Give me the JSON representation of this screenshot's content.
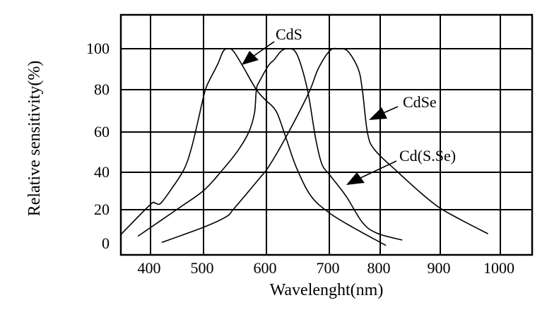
{
  "chart_data": {
    "type": "line",
    "title": "",
    "xlabel": "Wavelenght(nm)",
    "ylabel": "Relative sensitivity(%)",
    "xlim": [
      344,
      1053
    ],
    "ylim": [
      -4,
      113
    ],
    "grid": true,
    "x_ticks": [
      400,
      500,
      600,
      700,
      800,
      900,
      1000
    ],
    "x_tick_labels": [
      "400",
      "500",
      "600",
      "700",
      "800",
      "900",
      "1000"
    ],
    "y_ticks": [
      0,
      20,
      40,
      60,
      80,
      100
    ],
    "y_tick_labels": [
      "0",
      "20",
      "40",
      "60",
      "80",
      "100"
    ],
    "legend": "none (curves labeled by arrow annotations)",
    "series": [
      {
        "name": "CdS",
        "peak_nm": 538,
        "x": [
          345,
          399,
          409,
          419,
          440,
          463,
          476,
          489,
          500,
          506,
          522,
          531,
          538,
          547,
          562,
          584,
          600,
          609,
          618,
          631,
          648,
          671,
          701,
          746,
          809
        ],
        "y": [
          7,
          22.6,
          23.4,
          23.4,
          31.3,
          41.4,
          50.9,
          64.7,
          76.7,
          82.4,
          92.1,
          98.6,
          100,
          99,
          91.7,
          80,
          74.7,
          72.3,
          68.3,
          57.2,
          42.1,
          27.2,
          18.1,
          10.6,
          1
        ]
      },
      {
        "name": "Cd(S.Se)",
        "peak_nm": 635,
        "x": [
          377,
          449,
          500,
          528,
          555,
          572,
          581,
          584,
          589,
          604,
          612,
          624,
          635,
          646,
          656,
          667,
          678,
          688,
          701,
          733,
          765,
          793,
          836
        ],
        "y": [
          6,
          20,
          30.2,
          40.4,
          50.9,
          60,
          69,
          80,
          84.1,
          92.1,
          94.5,
          99,
          100,
          98.6,
          91,
          77.3,
          57.2,
          44.2,
          38.5,
          27.2,
          13.2,
          7.5,
          3.8
        ]
      },
      {
        "name": "CdSe",
        "peak_nm": 719,
        "x": [
          422,
          500,
          536,
          547,
          566,
          589,
          603,
          629,
          667,
          682,
          701,
          719,
          737,
          757,
          765,
          775,
          789,
          827,
          873,
          900,
          932,
          979
        ],
        "y": [
          2.6,
          10.6,
          16.2,
          20,
          27.5,
          36.8,
          42.5,
          56.3,
          78.3,
          90,
          99,
          100,
          98.6,
          90,
          79.7,
          59.6,
          51.2,
          40.7,
          27.5,
          20.8,
          15,
          7.2
        ]
      }
    ],
    "annotations": [
      {
        "text": "CdS",
        "series": "CdS",
        "arrow_to": [
          556,
          92
        ]
      },
      {
        "text": "CdSe",
        "series": "CdSe",
        "arrow_to": [
          779,
          62
        ]
      },
      {
        "text": "Cd(S.Se)",
        "series": "Cd(S.Se)",
        "arrow_to": [
          731,
          32
        ]
      }
    ]
  }
}
